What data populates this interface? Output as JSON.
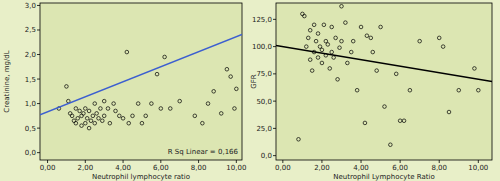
{
  "chart_data": [
    {
      "type": "scatter",
      "x_label": "Neutrophil lymphocyte ratio",
      "y_label": "Creatinine, mg/dL",
      "annotation": "R Sq Linear = 0,166",
      "color": "#000000",
      "marker": "circle",
      "x": [
        0.6,
        1.0,
        1.1,
        1.2,
        1.3,
        1.4,
        1.5,
        1.5,
        1.6,
        1.7,
        1.8,
        1.8,
        1.9,
        2.0,
        2.0,
        2.1,
        2.2,
        2.2,
        2.3,
        2.4,
        2.5,
        2.5,
        2.6,
        2.7,
        2.8,
        2.9,
        3.0,
        3.0,
        3.2,
        3.3,
        3.5,
        3.6,
        3.8,
        4.0,
        4.2,
        4.3,
        4.5,
        4.8,
        5.0,
        5.2,
        5.5,
        5.8,
        6.0,
        6.2,
        6.5,
        7.0,
        7.8,
        8.2,
        8.5,
        8.8,
        9.2,
        9.5,
        9.7,
        9.9,
        10.0
      ],
      "values": [
        0.9,
        1.35,
        1.05,
        0.8,
        0.75,
        0.65,
        0.9,
        0.6,
        0.7,
        0.85,
        0.55,
        0.75,
        0.8,
        0.9,
        0.6,
        0.7,
        0.85,
        0.5,
        0.65,
        0.75,
        1.0,
        0.6,
        0.8,
        0.7,
        0.9,
        0.65,
        0.75,
        1.05,
        0.9,
        0.6,
        1.0,
        0.85,
        0.75,
        0.7,
        2.05,
        0.6,
        0.75,
        1.0,
        0.6,
        0.75,
        1.0,
        1.6,
        0.9,
        1.95,
        0.9,
        1.05,
        0.75,
        0.6,
        1.0,
        1.25,
        0.8,
        1.7,
        1.55,
        0.9,
        1.3
      ],
      "trend_line": {
        "x": [
          -0.4,
          10.3
        ],
        "values": [
          0.77,
          2.41
        ],
        "color": "#3c5fd0"
      },
      "xlim": [
        -0.4,
        10.3
      ],
      "ylim": [
        -0.15,
        3.05
      ],
      "xticks": [
        {
          "value": 0,
          "label": "0,00"
        },
        {
          "value": 2,
          "label": "2,00"
        },
        {
          "value": 4,
          "label": "4,00"
        },
        {
          "value": 6,
          "label": "6,00"
        },
        {
          "value": 8,
          "label": "8,00"
        },
        {
          "value": 10,
          "label": "10,00"
        }
      ],
      "yticks": [
        {
          "value": 0,
          "label": "0,0"
        },
        {
          "value": 0.5,
          "label": "0,5"
        },
        {
          "value": 1,
          "label": "1,0"
        },
        {
          "value": 1.5,
          "label": "1,5"
        },
        {
          "value": 2,
          "label": "2,0"
        },
        {
          "value": 2.5,
          "label": "2,5"
        },
        {
          "value": 3,
          "label": "3,0"
        }
      ]
    },
    {
      "type": "scatter",
      "x_label": "Neutrophil Lymphocyte Ratio",
      "y_label": "GFR",
      "color": "#000000",
      "marker": "circle",
      "x": [
        0.8,
        1.0,
        1.1,
        1.2,
        1.3,
        1.4,
        1.4,
        1.5,
        1.6,
        1.6,
        1.7,
        1.8,
        1.8,
        1.9,
        2.0,
        2.0,
        2.1,
        2.2,
        2.2,
        2.3,
        2.4,
        2.5,
        2.5,
        2.6,
        2.7,
        2.8,
        2.9,
        3.0,
        3.0,
        3.2,
        3.3,
        3.5,
        3.6,
        3.8,
        4.0,
        4.2,
        4.3,
        4.5,
        4.6,
        4.8,
        5.0,
        5.2,
        5.5,
        5.8,
        6.0,
        6.2,
        6.5,
        7.0,
        8.0,
        8.2,
        8.5,
        9.0,
        9.8,
        10.0
      ],
      "values": [
        15,
        130,
        128,
        100,
        108,
        88,
        115,
        78,
        95,
        120,
        105,
        90,
        112,
        100,
        85,
        97,
        120,
        92,
        105,
        102,
        80,
        118,
        95,
        90,
        108,
        70,
        99,
        105,
        137,
        122,
        85,
        95,
        105,
        60,
        118,
        30,
        110,
        108,
        95,
        78,
        118,
        45,
        10,
        75,
        32,
        32,
        60,
        105,
        108,
        100,
        40,
        60,
        80,
        60
      ],
      "trend_line": {
        "x": [
          -0.35,
          10.7
        ],
        "values": [
          101,
          68
        ],
        "color": "#000000"
      },
      "xlim": [
        -0.35,
        10.7
      ],
      "ylim": [
        -4,
        140
      ],
      "xticks": [
        {
          "value": 0,
          "label": "0,00"
        },
        {
          "value": 2,
          "label": "2,00"
        },
        {
          "value": 4,
          "label": "4,00"
        },
        {
          "value": 6,
          "label": "6,00"
        },
        {
          "value": 8,
          "label": "8,00"
        },
        {
          "value": 10,
          "label": "10,00"
        }
      ],
      "yticks": [
        {
          "value": 0,
          "label": "0,0"
        },
        {
          "value": 25,
          "label": "25,0"
        },
        {
          "value": 50,
          "label": "50,0"
        },
        {
          "value": 75,
          "label": "75,0"
        },
        {
          "value": 100,
          "label": "100,0"
        },
        {
          "value": 125,
          "label": "125,0"
        }
      ]
    }
  ]
}
